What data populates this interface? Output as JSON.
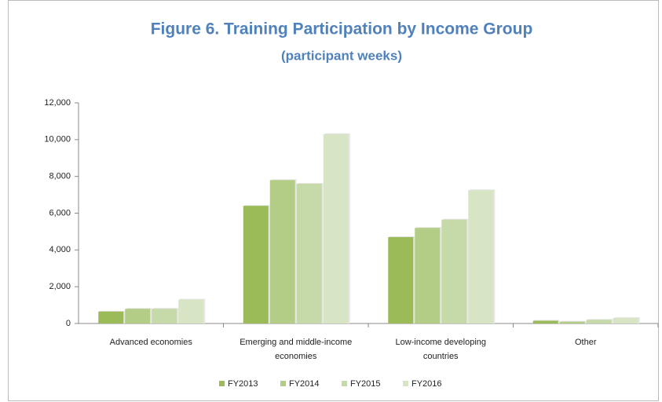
{
  "chart_data": {
    "type": "bar",
    "title": "Figure 6. Training Participation by Income Group",
    "subtitle": "(participant weeks)",
    "categories": [
      "Advanced economies",
      "Emerging and middle-income economies",
      "Low-income developing countries",
      "Other"
    ],
    "series": [
      {
        "name": "FY2013",
        "color": "#9bbb59",
        "values": [
          650,
          6400,
          4700,
          150
        ]
      },
      {
        "name": "FY2014",
        "color": "#b3cd86",
        "values": [
          800,
          7800,
          5200,
          100
        ]
      },
      {
        "name": "FY2015",
        "color": "#c6d9a8",
        "values": [
          800,
          7600,
          5650,
          200
        ]
      },
      {
        "name": "FY2016",
        "color": "#d8e5c5",
        "values": [
          1300,
          10300,
          7250,
          300
        ]
      }
    ],
    "ylim": [
      0,
      12000
    ],
    "yticks": [
      0,
      {
        "value": 2000,
        "label": "2,000"
      },
      {
        "value": 4000,
        "label": "4,000"
      },
      {
        "value": 6000,
        "label": "6,000"
      },
      {
        "value": 8000,
        "label": "8,000"
      },
      {
        "value": 10000,
        "label": "10,000"
      },
      {
        "value": 12000,
        "label": "12,000"
      }
    ],
    "legend": "bottom"
  }
}
